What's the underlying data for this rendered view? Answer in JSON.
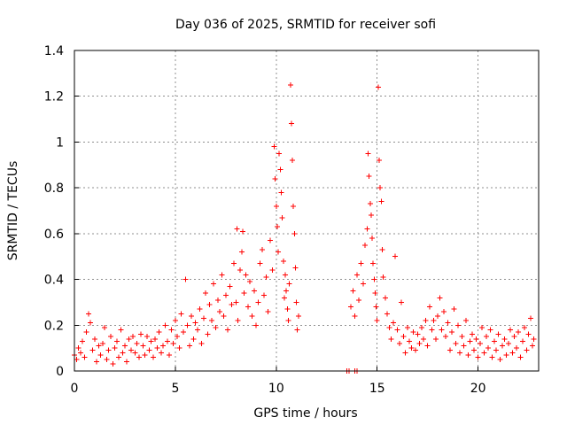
{
  "chart_data": {
    "type": "scatter",
    "title": "Day 036 of 2025, SRMTID for receiver sofi",
    "xlabel": "GPS time / hours",
    "ylabel": "SRMTID / TECUs",
    "xlim": [
      0,
      23
    ],
    "ylim": [
      0,
      1.4
    ],
    "xticks": [
      0,
      5,
      10,
      15,
      20
    ],
    "xtick_labels": [
      "0",
      "5",
      "10",
      "15",
      "20"
    ],
    "yticks": [
      0,
      0.2,
      0.4,
      0.6,
      0.8,
      1,
      1.2,
      1.4
    ],
    "ytick_labels": [
      "0",
      "0.2",
      "0.4",
      "0.6",
      "0.8",
      "1",
      "1.2",
      "1.4"
    ],
    "grid": true,
    "marker": "+",
    "colors": {
      "points": "#ff0000",
      "axes": "#000000",
      "grid": "#8f8f8f",
      "background": "#ffffff"
    },
    "series": [
      {
        "name": "SRMTID",
        "points": [
          [
            0.0,
            0.07
          ],
          [
            0.1,
            0.05
          ],
          [
            0.2,
            0.1
          ],
          [
            0.3,
            0.08
          ],
          [
            0.4,
            0.13
          ],
          [
            0.5,
            0.06
          ],
          [
            0.6,
            0.17
          ],
          [
            0.7,
            0.25
          ],
          [
            0.8,
            0.21
          ],
          [
            0.9,
            0.09
          ],
          [
            1.0,
            0.14
          ],
          [
            1.1,
            0.04
          ],
          [
            1.2,
            0.11
          ],
          [
            1.3,
            0.07
          ],
          [
            1.4,
            0.12
          ],
          [
            1.5,
            0.19
          ],
          [
            1.6,
            0.05
          ],
          [
            1.7,
            0.09
          ],
          [
            1.8,
            0.15
          ],
          [
            1.9,
            0.03
          ],
          [
            2.0,
            0.1
          ],
          [
            2.1,
            0.13
          ],
          [
            2.2,
            0.06
          ],
          [
            2.3,
            0.18
          ],
          [
            2.4,
            0.08
          ],
          [
            2.5,
            0.11
          ],
          [
            2.6,
            0.04
          ],
          [
            2.7,
            0.14
          ],
          [
            2.8,
            0.09
          ],
          [
            2.9,
            0.15
          ],
          [
            3.0,
            0.08
          ],
          [
            3.1,
            0.12
          ],
          [
            3.2,
            0.06
          ],
          [
            3.3,
            0.16
          ],
          [
            3.4,
            0.11
          ],
          [
            3.5,
            0.07
          ],
          [
            3.6,
            0.15
          ],
          [
            3.7,
            0.09
          ],
          [
            3.8,
            0.13
          ],
          [
            3.9,
            0.06
          ],
          [
            4.0,
            0.14
          ],
          [
            4.1,
            0.1
          ],
          [
            4.2,
            0.17
          ],
          [
            4.3,
            0.08
          ],
          [
            4.4,
            0.11
          ],
          [
            4.5,
            0.2
          ],
          [
            4.6,
            0.13
          ],
          [
            4.7,
            0.07
          ],
          [
            4.8,
            0.18
          ],
          [
            4.9,
            0.12
          ],
          [
            5.0,
            0.22
          ],
          [
            5.1,
            0.15
          ],
          [
            5.2,
            0.1
          ],
          [
            5.3,
            0.25
          ],
          [
            5.4,
            0.17
          ],
          [
            5.5,
            0.4
          ],
          [
            5.6,
            0.2
          ],
          [
            5.7,
            0.11
          ],
          [
            5.8,
            0.24
          ],
          [
            5.9,
            0.14
          ],
          [
            6.0,
            0.21
          ],
          [
            6.1,
            0.18
          ],
          [
            6.2,
            0.27
          ],
          [
            6.3,
            0.12
          ],
          [
            6.4,
            0.23
          ],
          [
            6.5,
            0.34
          ],
          [
            6.6,
            0.16
          ],
          [
            6.7,
            0.29
          ],
          [
            6.8,
            0.22
          ],
          [
            6.9,
            0.38
          ],
          [
            7.0,
            0.19
          ],
          [
            7.1,
            0.31
          ],
          [
            7.2,
            0.26
          ],
          [
            7.3,
            0.42
          ],
          [
            7.4,
            0.24
          ],
          [
            7.5,
            0.33
          ],
          [
            7.6,
            0.18
          ],
          [
            7.7,
            0.37
          ],
          [
            7.8,
            0.29
          ],
          [
            7.9,
            0.47
          ],
          [
            8.0,
            0.3
          ],
          [
            8.05,
            0.62
          ],
          [
            8.1,
            0.22
          ],
          [
            8.2,
            0.44
          ],
          [
            8.3,
            0.52
          ],
          [
            8.35,
            0.61
          ],
          [
            8.4,
            0.34
          ],
          [
            8.5,
            0.42
          ],
          [
            8.6,
            0.28
          ],
          [
            8.7,
            0.39
          ],
          [
            8.8,
            0.24
          ],
          [
            8.9,
            0.35
          ],
          [
            9.0,
            0.2
          ],
          [
            9.1,
            0.3
          ],
          [
            9.2,
            0.47
          ],
          [
            9.3,
            0.53
          ],
          [
            9.4,
            0.33
          ],
          [
            9.5,
            0.41
          ],
          [
            9.6,
            0.26
          ],
          [
            9.7,
            0.57
          ],
          [
            9.8,
            0.44
          ],
          [
            9.9,
            0.98
          ],
          [
            9.95,
            0.84
          ],
          [
            10.0,
            0.72
          ],
          [
            10.05,
            0.63
          ],
          [
            10.1,
            0.52
          ],
          [
            10.15,
            0.95
          ],
          [
            10.2,
            0.88
          ],
          [
            10.25,
            0.78
          ],
          [
            10.3,
            0.67
          ],
          [
            10.35,
            0.48
          ],
          [
            10.4,
            0.32
          ],
          [
            10.45,
            0.42
          ],
          [
            10.5,
            0.35
          ],
          [
            10.55,
            0.27
          ],
          [
            10.6,
            0.22
          ],
          [
            10.65,
            0.38
          ],
          [
            10.7,
            1.25
          ],
          [
            10.75,
            1.08
          ],
          [
            10.8,
            0.92
          ],
          [
            10.85,
            0.72
          ],
          [
            10.9,
            0.6
          ],
          [
            10.95,
            0.45
          ],
          [
            11.0,
            0.3
          ],
          [
            11.05,
            0.18
          ],
          [
            11.1,
            0.24
          ],
          [
            13.5,
            0.0
          ],
          [
            13.6,
            0.0
          ],
          [
            13.9,
            0.0
          ],
          [
            14.0,
            0.0
          ],
          [
            13.7,
            0.28
          ],
          [
            13.8,
            0.35
          ],
          [
            13.9,
            0.24
          ],
          [
            14.0,
            0.42
          ],
          [
            14.1,
            0.31
          ],
          [
            14.2,
            0.47
          ],
          [
            14.3,
            0.38
          ],
          [
            14.4,
            0.55
          ],
          [
            14.5,
            0.62
          ],
          [
            14.55,
            0.95
          ],
          [
            14.6,
            0.85
          ],
          [
            14.65,
            0.73
          ],
          [
            14.7,
            0.68
          ],
          [
            14.75,
            0.58
          ],
          [
            14.8,
            0.47
          ],
          [
            14.85,
            0.4
          ],
          [
            14.9,
            0.34
          ],
          [
            14.95,
            0.28
          ],
          [
            15.0,
            0.22
          ],
          [
            15.05,
            1.24
          ],
          [
            15.1,
            0.92
          ],
          [
            15.15,
            0.8
          ],
          [
            15.2,
            0.74
          ],
          [
            15.25,
            0.53
          ],
          [
            15.3,
            0.41
          ],
          [
            15.4,
            0.32
          ],
          [
            15.5,
            0.25
          ],
          [
            15.6,
            0.19
          ],
          [
            15.7,
            0.14
          ],
          [
            15.8,
            0.21
          ],
          [
            15.9,
            0.5
          ],
          [
            16.0,
            0.18
          ],
          [
            16.1,
            0.12
          ],
          [
            16.2,
            0.3
          ],
          [
            16.3,
            0.15
          ],
          [
            16.4,
            0.08
          ],
          [
            16.5,
            0.19
          ],
          [
            16.6,
            0.13
          ],
          [
            16.7,
            0.1
          ],
          [
            16.8,
            0.17
          ],
          [
            16.9,
            0.09
          ],
          [
            17.0,
            0.16
          ],
          [
            17.1,
            0.12
          ],
          [
            17.2,
            0.19
          ],
          [
            17.3,
            0.14
          ],
          [
            17.4,
            0.22
          ],
          [
            17.5,
            0.11
          ],
          [
            17.6,
            0.28
          ],
          [
            17.7,
            0.18
          ],
          [
            17.8,
            0.22
          ],
          [
            17.9,
            0.14
          ],
          [
            18.0,
            0.24
          ],
          [
            18.1,
            0.32
          ],
          [
            18.2,
            0.18
          ],
          [
            18.3,
            0.26
          ],
          [
            18.4,
            0.15
          ],
          [
            18.5,
            0.21
          ],
          [
            18.6,
            0.09
          ],
          [
            18.7,
            0.17
          ],
          [
            18.8,
            0.27
          ],
          [
            18.9,
            0.12
          ],
          [
            19.0,
            0.2
          ],
          [
            19.1,
            0.08
          ],
          [
            19.2,
            0.15
          ],
          [
            19.3,
            0.11
          ],
          [
            19.4,
            0.22
          ],
          [
            19.5,
            0.07
          ],
          [
            19.6,
            0.13
          ],
          [
            19.7,
            0.16
          ],
          [
            19.8,
            0.09
          ],
          [
            19.9,
            0.14
          ],
          [
            20.0,
            0.06
          ],
          [
            20.1,
            0.12
          ],
          [
            20.2,
            0.19
          ],
          [
            20.3,
            0.08
          ],
          [
            20.4,
            0.15
          ],
          [
            20.5,
            0.1
          ],
          [
            20.6,
            0.18
          ],
          [
            20.7,
            0.06
          ],
          [
            20.8,
            0.13
          ],
          [
            20.9,
            0.09
          ],
          [
            21.0,
            0.16
          ],
          [
            21.1,
            0.05
          ],
          [
            21.2,
            0.11
          ],
          [
            21.3,
            0.14
          ],
          [
            21.4,
            0.07
          ],
          [
            21.5,
            0.12
          ],
          [
            21.6,
            0.18
          ],
          [
            21.7,
            0.08
          ],
          [
            21.8,
            0.15
          ],
          [
            21.9,
            0.1
          ],
          [
            22.0,
            0.17
          ],
          [
            22.1,
            0.06
          ],
          [
            22.2,
            0.13
          ],
          [
            22.3,
            0.19
          ],
          [
            22.4,
            0.09
          ],
          [
            22.5,
            0.16
          ],
          [
            22.6,
            0.23
          ],
          [
            22.7,
            0.11
          ],
          [
            22.75,
            0.14
          ]
        ]
      }
    ]
  }
}
